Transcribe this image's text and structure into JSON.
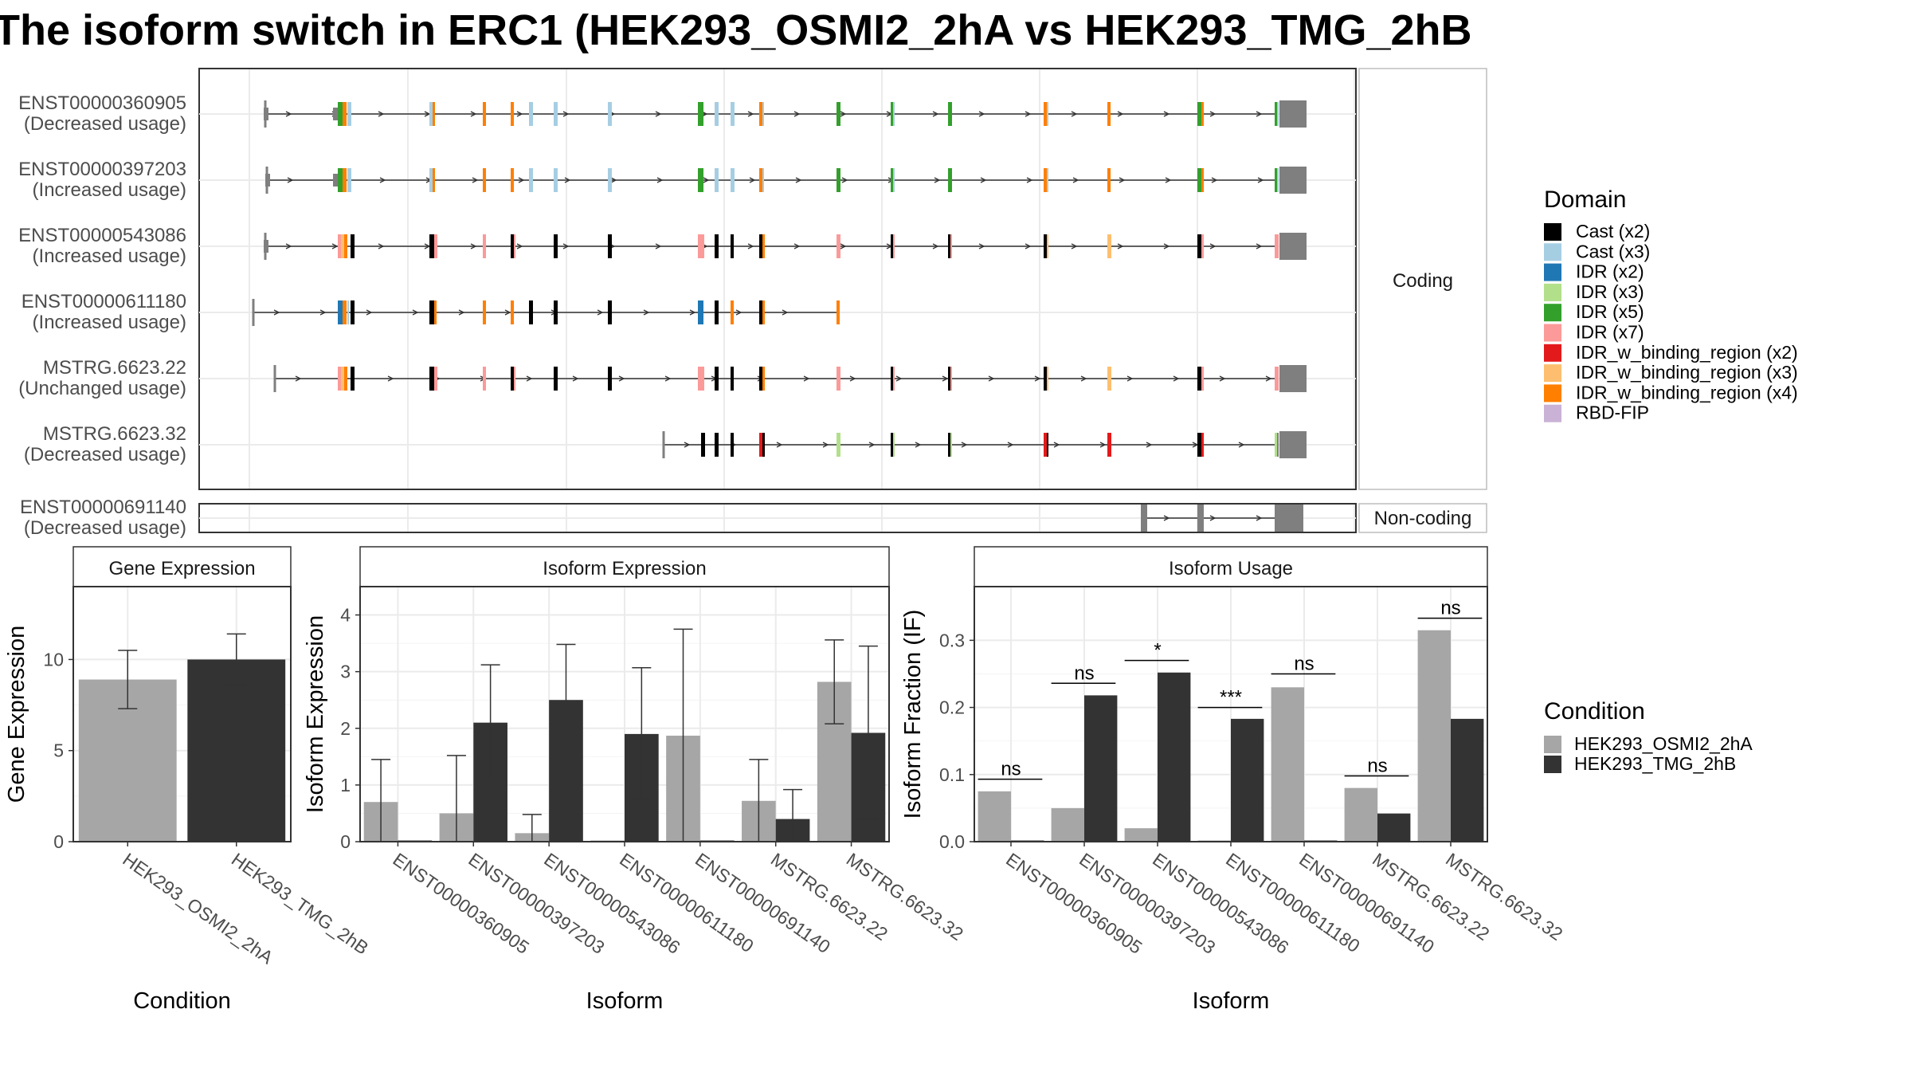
{
  "title": "The isoform switch in ERC1 (HEK293_OSMI2_2hA vs HEK293_TMG_2hB",
  "colors": {
    "cond_a": "#a6a6a6",
    "cond_b": "#333333",
    "Cast (x2)": "#000000",
    "Cast (x3)": "#a6cee3",
    "IDR (x2)": "#1f78b4",
    "IDR (x3)": "#b2df8a",
    "IDR (x5)": "#33a02c",
    "IDR (x7)": "#fb9a99",
    "IDR_w_binding_region (x2)": "#e31a1c",
    "IDR_w_binding_region (x3)": "#fdbf6f",
    "IDR_w_binding_region (x4)": "#ff7f00",
    "RBD-FIP": "#cab2d6"
  },
  "chart_data": [
    {
      "type": "gene_structure",
      "facets": [
        "Coding",
        "Non-coding"
      ],
      "transcripts": [
        {
          "id": "ENST00000360905",
          "usage": "(Decreased usage)",
          "facet": "Coding"
        },
        {
          "id": "ENST00000397203",
          "usage": "(Increased usage)",
          "facet": "Coding"
        },
        {
          "id": "ENST00000543086",
          "usage": "(Increased usage)",
          "facet": "Coding"
        },
        {
          "id": "ENST00000611180",
          "usage": "(Increased usage)",
          "facet": "Coding"
        },
        {
          "id": "MSTRG.6623.22",
          "usage": "(Unchanged usage)",
          "facet": "Coding"
        },
        {
          "id": "MSTRG.6623.32",
          "usage": "(Decreased usage)",
          "facet": "Coding"
        },
        {
          "id": "ENST00000691140",
          "usage": "(Decreased usage)",
          "facet": "Non-coding"
        }
      ],
      "legend_title": "Domain",
      "legend": [
        "Cast (x2)",
        "Cast (x3)",
        "IDR (x2)",
        "IDR (x3)",
        "IDR (x5)",
        "IDR (x7)",
        "IDR_w_binding_region (x2)",
        "IDR_w_binding_region (x3)",
        "IDR_w_binding_region (x4)",
        "RBD-FIP"
      ]
    },
    {
      "type": "bar",
      "panel": "Gene Expression",
      "xlabel": "Condition",
      "ylabel": "Gene Expression",
      "ylim": [
        0,
        14
      ],
      "yticks": [
        0,
        5,
        10
      ],
      "categories": [
        "HEK293_OSMI2_2hA",
        "HEK293_TMG_2hB"
      ],
      "values": [
        8.9,
        10.0
      ],
      "err_low": [
        7.3,
        8.6
      ],
      "err_high": [
        10.5,
        11.4
      ]
    },
    {
      "type": "bar",
      "panel": "Isoform Expression",
      "xlabel": "Isoform",
      "ylabel": "Isoform Expression",
      "ylim": [
        0,
        4.5
      ],
      "yticks": [
        0,
        1,
        2,
        3,
        4
      ],
      "categories": [
        "ENST00000360905",
        "ENST00000397203",
        "ENST00000543086",
        "ENST00000611180",
        "ENST00000691140",
        "MSTRG.6623.22",
        "MSTRG.6623.32"
      ],
      "series": [
        {
          "name": "HEK293_OSMI2_2hA",
          "values": [
            0.7,
            0.5,
            0.15,
            0.0,
            1.87,
            0.72,
            2.82
          ],
          "err_low": [
            0.0,
            0.0,
            0.0,
            0.0,
            0.0,
            0.0,
            2.08
          ],
          "err_high": [
            1.45,
            1.52,
            0.48,
            0.0,
            3.75,
            1.45,
            3.56
          ]
        },
        {
          "name": "HEK293_TMG_2hB",
          "values": [
            0.0,
            2.1,
            2.5,
            1.9,
            0.0,
            0.4,
            1.92
          ],
          "err_low": [
            0.0,
            1.1,
            1.55,
            0.75,
            0.0,
            0.0,
            0.4
          ],
          "err_high": [
            0.0,
            3.12,
            3.48,
            3.07,
            0.0,
            0.92,
            3.45
          ]
        }
      ]
    },
    {
      "type": "bar",
      "panel": "Isoform Usage",
      "xlabel": "Isoform",
      "ylabel": "Isoform Fraction (IF)",
      "ylim": [
        0,
        0.38
      ],
      "yticks": [
        "0.0",
        "0.1",
        "0.2",
        "0.3"
      ],
      "categories": [
        "ENST00000360905",
        "ENST00000397203",
        "ENST00000543086",
        "ENST00000611180",
        "ENST00000691140",
        "MSTRG.6623.22",
        "MSTRG.6623.32"
      ],
      "series": [
        {
          "name": "HEK293_OSMI2_2hA",
          "values": [
            0.075,
            0.05,
            0.02,
            0.0,
            0.23,
            0.08,
            0.315
          ]
        },
        {
          "name": "HEK293_TMG_2hB",
          "values": [
            0.0,
            0.218,
            0.252,
            0.183,
            0.0,
            0.042,
            0.183
          ]
        }
      ],
      "significance": [
        "ns",
        "ns",
        "*",
        "***",
        "ns",
        "ns",
        "ns"
      ],
      "sig_y": [
        0.093,
        0.236,
        0.27,
        0.2,
        0.25,
        0.098,
        0.333
      ]
    }
  ],
  "condition_legend": {
    "title": "Condition",
    "items": [
      "HEK293_OSMI2_2hA",
      "HEK293_TMG_2hB"
    ]
  }
}
